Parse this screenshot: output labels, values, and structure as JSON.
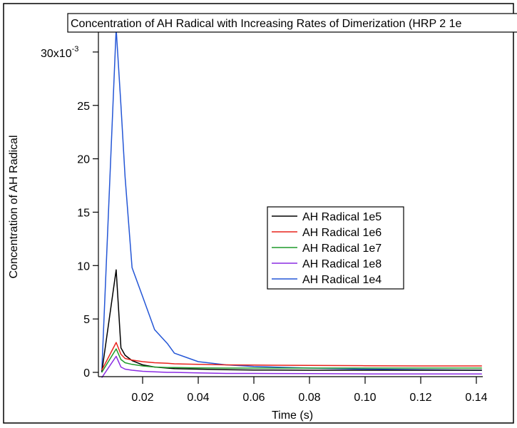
{
  "chart_data": {
    "type": "line",
    "title": "Concentration of AH Radical with Increasing Rates of Dimerization (HRP 2 1e",
    "xlabel": "Time (s)",
    "ylabel": "Concentration of AH Radical",
    "y_multiplier_label": "x10",
    "y_multiplier_exponent": "-3",
    "xlim": [
      0.005,
      0.142
    ],
    "ylim": [
      -0.4,
      32.2
    ],
    "x_ticks": [
      0.02,
      0.04,
      0.06,
      0.08,
      0.1,
      0.12,
      0.14
    ],
    "x_tick_labels": [
      "0.02",
      "0.04",
      "0.06",
      "0.08",
      "0.10",
      "0.12",
      "0.14"
    ],
    "y_ticks": [
      0,
      5,
      10,
      15,
      20,
      25,
      30
    ],
    "y_tick_labels": [
      "0",
      "5",
      "10",
      "15",
      "20",
      "25",
      "30"
    ],
    "grid": false,
    "legend_position": "center-right",
    "x": [
      0.0053,
      0.0105,
      0.0122,
      0.0137,
      0.0162,
      0.02,
      0.0243,
      0.0289,
      0.0314,
      0.04,
      0.05,
      0.06,
      0.08,
      0.1,
      0.12,
      0.142
    ],
    "series": [
      {
        "name": "AH Radical 1e5",
        "color": "#000000",
        "values": [
          0,
          9.6,
          2.3,
          1.6,
          1.1,
          0.7,
          0.5,
          0.4,
          0.35,
          0.3,
          0.25,
          0.22,
          0.2,
          0.2,
          0.2,
          0.2
        ]
      },
      {
        "name": "AH Radical 1e6",
        "color": "#e8231c",
        "values": [
          0.2,
          2.8,
          1.7,
          1.3,
          1.15,
          1.0,
          0.9,
          0.85,
          0.8,
          0.75,
          0.7,
          0.68,
          0.65,
          0.62,
          0.6,
          0.6
        ]
      },
      {
        "name": "AH Radical 1e7",
        "color": "#1f9a2a",
        "values": [
          0,
          2.2,
          1.2,
          0.9,
          0.75,
          0.6,
          0.5,
          0.45,
          0.45,
          0.42,
          0.4,
          0.4,
          0.4,
          0.4,
          0.4,
          0.4
        ]
      },
      {
        "name": "AH Radical 1e8",
        "color": "#8a2be2",
        "values": [
          -0.5,
          1.5,
          0.5,
          0.3,
          0.2,
          0.1,
          0.05,
          0,
          0,
          -0.05,
          -0.1,
          -0.1,
          -0.12,
          -0.15,
          -0.15,
          -0.15
        ]
      },
      {
        "name": "AH Radical 1e4",
        "color": "#2456d6",
        "values": [
          0,
          32.2,
          25,
          18.3,
          9.8,
          7.1,
          4.0,
          2.7,
          1.8,
          1.0,
          0.7,
          0.55,
          0.4,
          0.3,
          0.25,
          0.2
        ]
      }
    ]
  }
}
